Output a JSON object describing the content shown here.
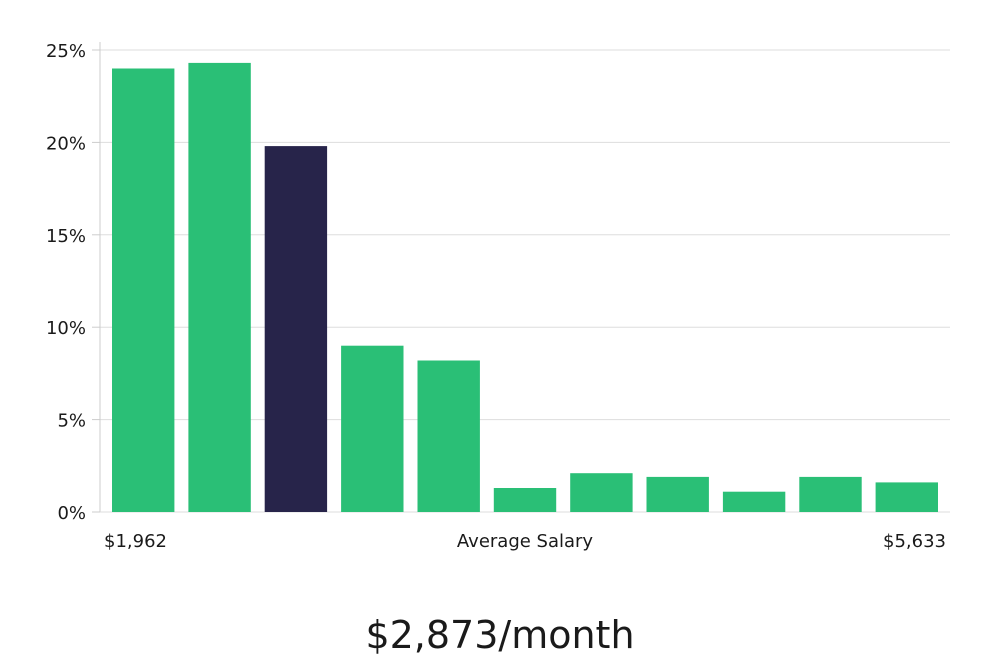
{
  "chart_data": {
    "type": "bar",
    "x_min_label": "$1,962",
    "x_max_label": "$5,633",
    "xlabel": "Average Salary",
    "y_ticks": [
      "0%",
      "5%",
      "10%",
      "15%",
      "20%",
      "25%"
    ],
    "ylim": [
      0,
      25
    ],
    "values": [
      24.0,
      24.3,
      19.8,
      9.0,
      8.2,
      1.3,
      2.1,
      1.9,
      1.1,
      1.9,
      1.6
    ],
    "highlight_index": 2,
    "grid": true,
    "colors": {
      "bar": "#2abf76",
      "highlight": "#27244a",
      "grid": "#dddddd",
      "axis": "#cccccc"
    }
  },
  "average_salary": "$2,873/month"
}
